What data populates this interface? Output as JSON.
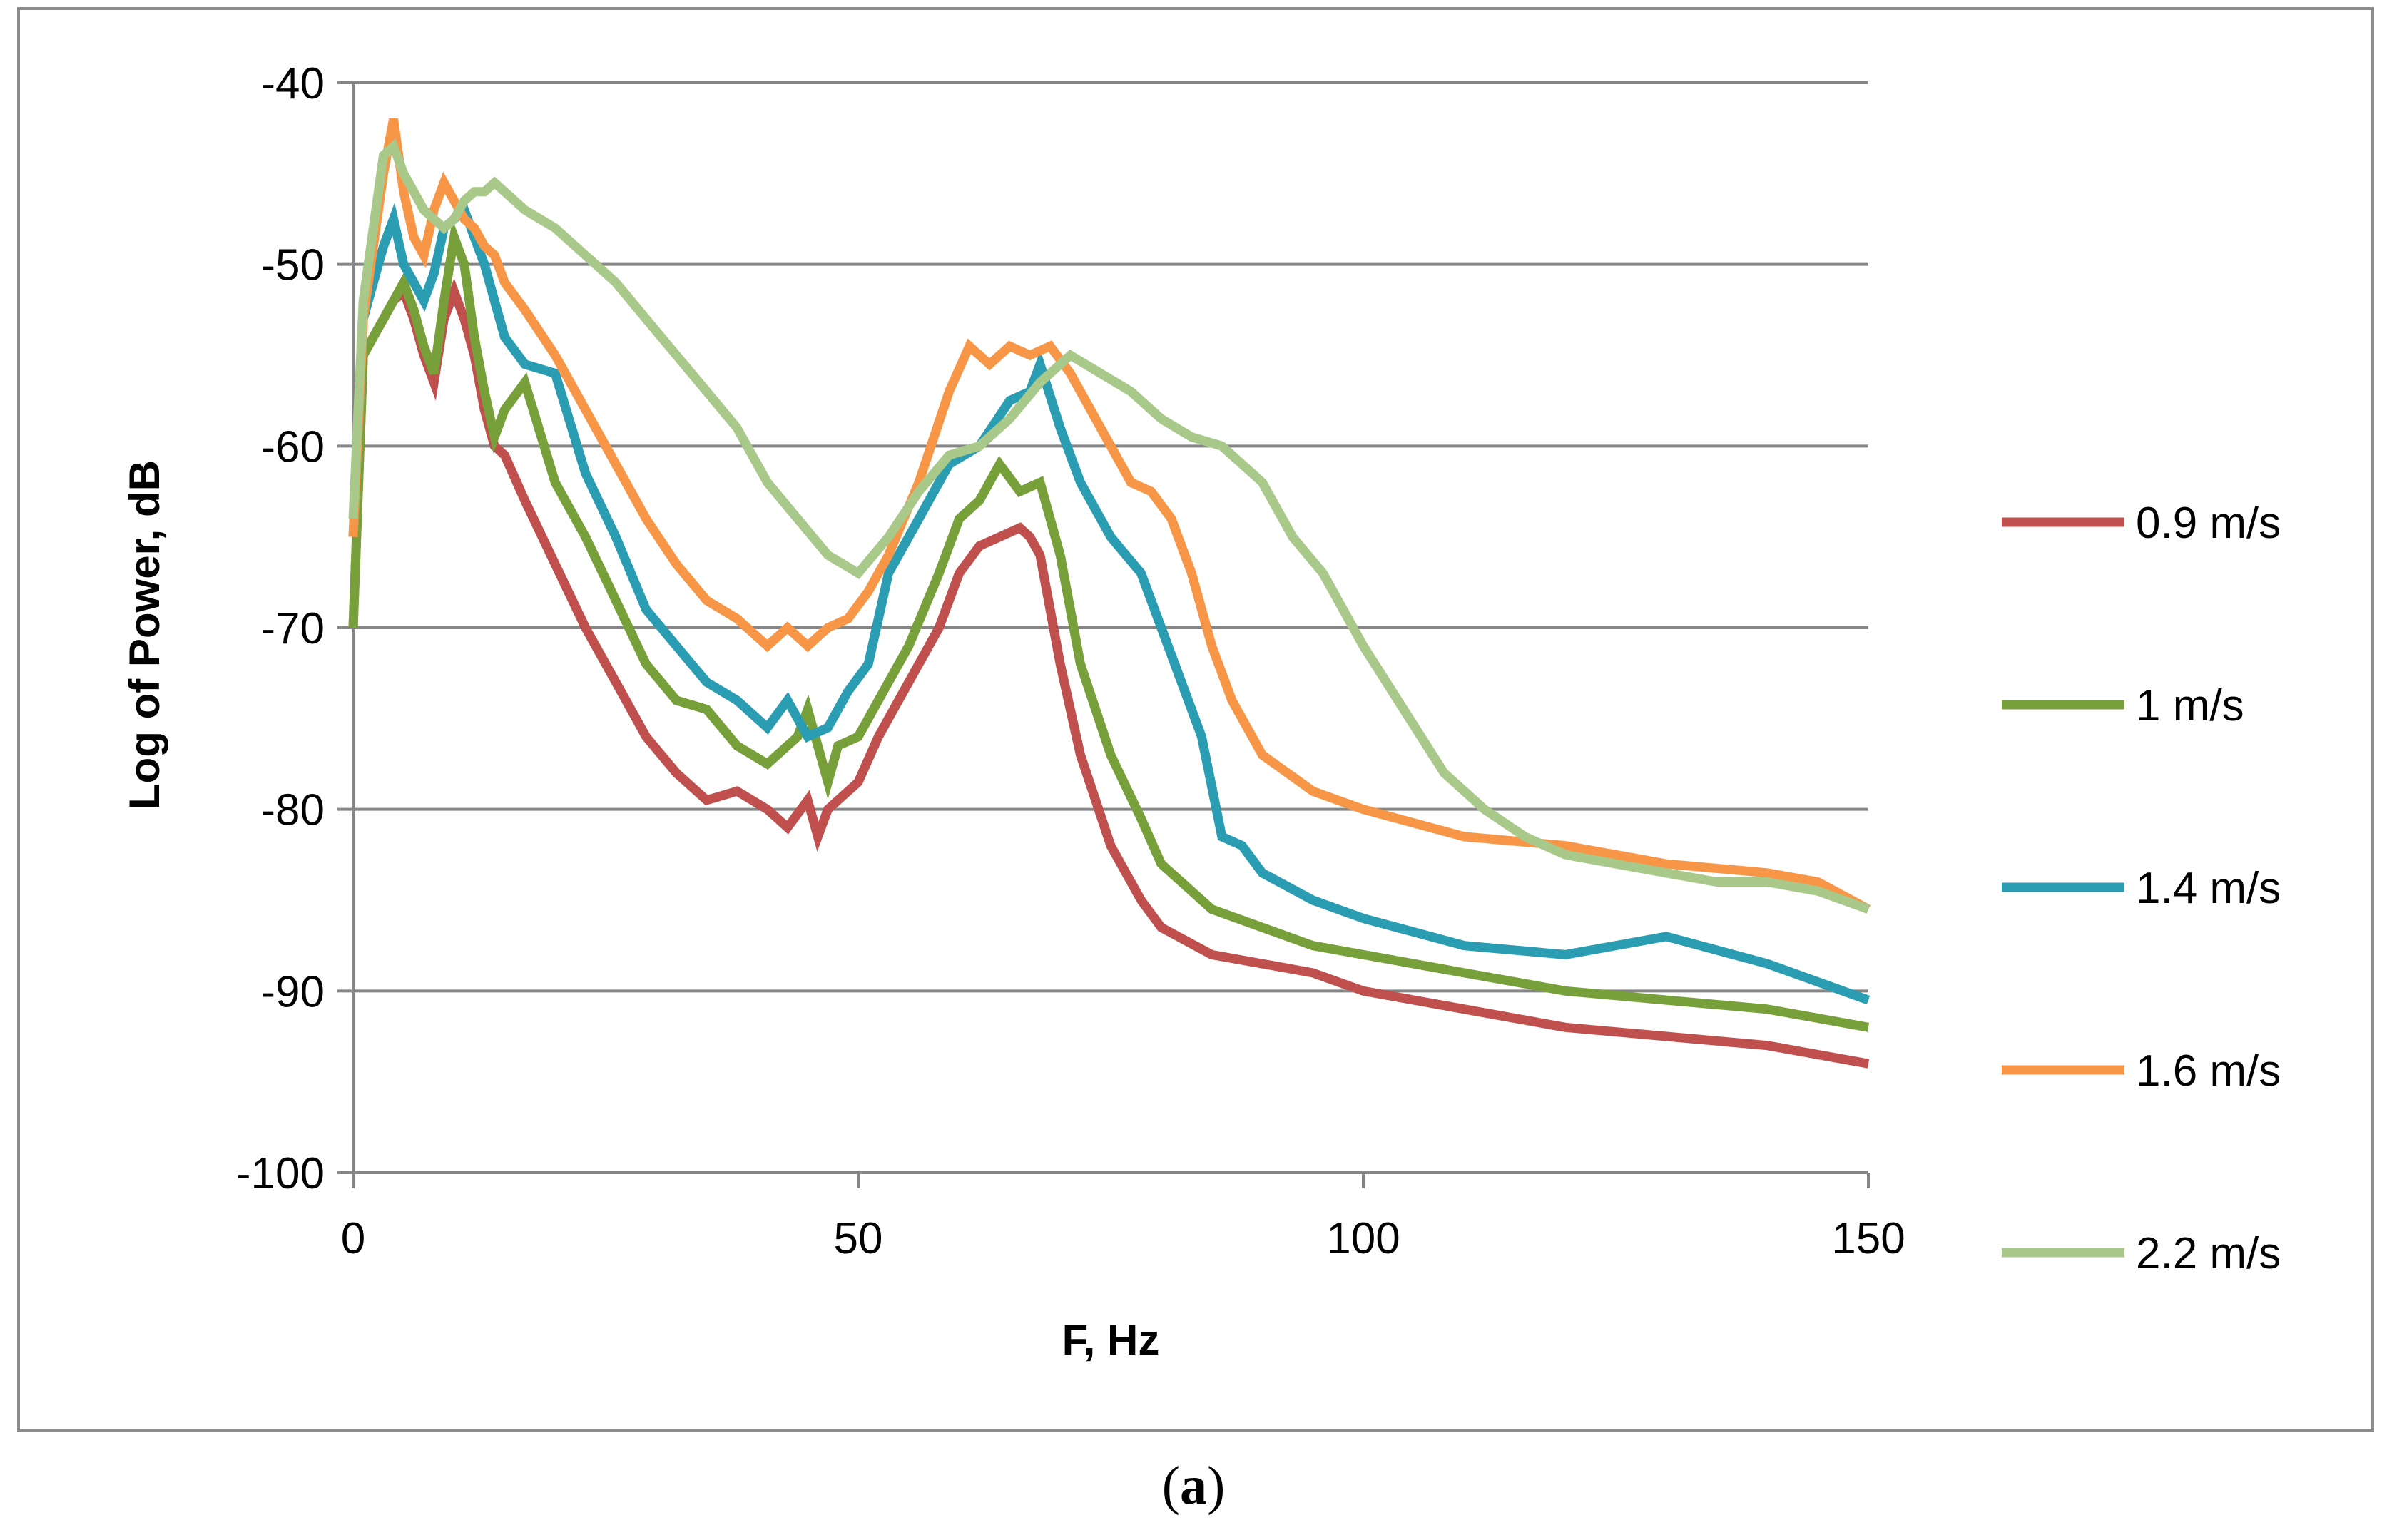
{
  "caption": {
    "open": "(",
    "letter": "a",
    "close": ")"
  },
  "chart_data": {
    "type": "line",
    "title": "",
    "xlabel": "F, Hz",
    "ylabel": "Log of Power, dB",
    "xlim": [
      0,
      150
    ],
    "ylim": [
      -100,
      -40
    ],
    "xticks": [
      0,
      50,
      100,
      150
    ],
    "yticks": [
      -40,
      -50,
      -60,
      -70,
      -80,
      -90,
      -100
    ],
    "grid": "horizontal",
    "legend_position": "right",
    "series": [
      {
        "name": "0.9 m/s",
        "color": "#c0504d",
        "x": [
          0,
          1,
          2,
          3,
          4,
          5,
          6,
          7,
          8,
          9,
          10,
          11,
          12,
          13,
          14,
          15,
          17,
          20,
          23,
          26,
          29,
          32,
          35,
          38,
          41,
          43,
          45,
          46,
          47,
          48,
          50,
          52,
          55,
          58,
          60,
          62,
          64,
          66,
          67,
          68,
          70,
          72,
          75,
          78,
          80,
          85,
          90,
          95,
          100,
          110,
          120,
          130,
          140,
          145,
          150
        ],
        "y": [
          -70,
          -55,
          -54,
          -53,
          -52,
          -51.5,
          -53,
          -55,
          -56.5,
          -53,
          -51.5,
          -53,
          -55,
          -58,
          -60,
          -60.5,
          -63,
          -66.5,
          -70,
          -73,
          -76,
          -78,
          -79.5,
          -79,
          -80,
          -81,
          -79.5,
          -81.5,
          -80,
          -79.5,
          -78.5,
          -76,
          -73,
          -70,
          -67,
          -65.5,
          -65,
          -64.5,
          -65,
          -66,
          -72,
          -77,
          -82,
          -85,
          -86.5,
          -88,
          -88.5,
          -89,
          -90,
          -91,
          -92,
          -92.5,
          -93,
          -93.5,
          -94
        ]
      },
      {
        "name": "1 m/s",
        "color": "#77a03a",
        "x": [
          0,
          1,
          2,
          3,
          4,
          5,
          6,
          7,
          8,
          9,
          10,
          11,
          12,
          13,
          14,
          15,
          17,
          20,
          23,
          26,
          29,
          32,
          35,
          38,
          41,
          44,
          45,
          47,
          48,
          50,
          52,
          55,
          58,
          60,
          62,
          64,
          66,
          68,
          70,
          72,
          75,
          78,
          80,
          85,
          90,
          95,
          100,
          110,
          120,
          130,
          140,
          145,
          150
        ],
        "y": [
          -70,
          -55,
          -54,
          -53,
          -52,
          -51,
          -52.5,
          -54.5,
          -56,
          -52,
          -48.5,
          -50,
          -54,
          -57,
          -59.5,
          -58,
          -56.5,
          -62,
          -65,
          -68.5,
          -72,
          -74,
          -74.5,
          -76.5,
          -77.5,
          -76,
          -74.5,
          -78.5,
          -76.5,
          -76,
          -74,
          -71,
          -67,
          -64,
          -63,
          -61,
          -62.5,
          -62,
          -66,
          -72,
          -77,
          -80.5,
          -83,
          -85.5,
          -86.5,
          -87.5,
          -88,
          -89,
          -90,
          -90.5,
          -91,
          -91.5,
          -92
        ]
      },
      {
        "name": "1.4 m/s",
        "color": "#2a9db2",
        "x": [
          0,
          1,
          2,
          3,
          4,
          5,
          6,
          7,
          8,
          9,
          10,
          11,
          12,
          13,
          14,
          15,
          17,
          20,
          23,
          26,
          29,
          32,
          35,
          38,
          41,
          43,
          45,
          47,
          49,
          51,
          53,
          56,
          59,
          62,
          65,
          67,
          68,
          70,
          72,
          75,
          78,
          80,
          82,
          84,
          86,
          88,
          90,
          95,
          100,
          110,
          120,
          130,
          140,
          145,
          150
        ],
        "y": [
          -65,
          -53,
          -51,
          -49,
          -47.5,
          -50,
          -51,
          -52,
          -50.5,
          -48,
          -47.5,
          -47,
          -48.5,
          -50,
          -52,
          -54,
          -55.5,
          -56,
          -61.5,
          -65,
          -69,
          -71,
          -73,
          -74,
          -75.5,
          -74,
          -76,
          -75.5,
          -73.5,
          -72,
          -67,
          -64,
          -61,
          -60,
          -57.5,
          -57,
          -55.5,
          -59,
          -62,
          -65,
          -67,
          -70,
          -73,
          -76,
          -81.5,
          -82,
          -83.5,
          -85,
          -86,
          -87.5,
          -88,
          -87,
          -88.5,
          -89.5,
          -90.5
        ]
      },
      {
        "name": "1.6 m/s",
        "color": "#f79646",
        "x": [
          0,
          1,
          2,
          3,
          4,
          5,
          6,
          7,
          8,
          9,
          10,
          11,
          12,
          13,
          14,
          15,
          17,
          20,
          23,
          26,
          29,
          32,
          35,
          38,
          41,
          43,
          45,
          47,
          49,
          51,
          53,
          56,
          59,
          61,
          63,
          65,
          67,
          69,
          71,
          73,
          75,
          77,
          79,
          81,
          83,
          85,
          87,
          90,
          95,
          100,
          110,
          120,
          130,
          140,
          145,
          150
        ],
        "y": [
          -65,
          -53,
          -49,
          -45,
          -42,
          -46,
          -48.5,
          -49.5,
          -47,
          -45.5,
          -46.5,
          -47.5,
          -48,
          -49,
          -49.5,
          -51,
          -52.5,
          -55,
          -58,
          -61,
          -64,
          -66.5,
          -68.5,
          -69.5,
          -71,
          -70,
          -71,
          -70,
          -69.5,
          -68,
          -66,
          -62,
          -57,
          -54.5,
          -55.5,
          -54.5,
          -55,
          -54.5,
          -56,
          -58,
          -60,
          -62,
          -62.5,
          -64,
          -67,
          -71,
          -74,
          -77,
          -79,
          -80,
          -81.5,
          -82,
          -83,
          -83.5,
          -84,
          -85.5
        ]
      },
      {
        "name": "2.2 m/s",
        "color": "#a9c98b",
        "x": [
          0,
          1,
          2,
          3,
          4,
          5,
          6,
          7,
          8,
          9,
          10,
          11,
          12,
          13,
          14,
          15,
          17,
          20,
          23,
          26,
          29,
          32,
          35,
          38,
          41,
          44,
          47,
          50,
          53,
          56,
          59,
          62,
          65,
          68,
          71,
          74,
          77,
          80,
          83,
          86,
          88,
          90,
          93,
          96,
          100,
          104,
          108,
          112,
          116,
          120,
          125,
          130,
          135,
          140,
          145,
          150
        ],
        "y": [
          -64,
          -52,
          -48,
          -44,
          -43.5,
          -45,
          -46,
          -47,
          -47.5,
          -48,
          -47.5,
          -46.5,
          -46,
          -46,
          -45.5,
          -46,
          -47,
          -48,
          -49.5,
          -51,
          -53,
          -55,
          -57,
          -59,
          -62,
          -64,
          -66,
          -67,
          -65,
          -62.5,
          -60.5,
          -60,
          -58.5,
          -56.5,
          -55,
          -56,
          -57,
          -58.5,
          -59.5,
          -60,
          -61,
          -62,
          -65,
          -67,
          -71,
          -74.5,
          -78,
          -80,
          -81.5,
          -82.5,
          -83,
          -83.5,
          -84,
          -84,
          -84.5,
          -85.5
        ]
      }
    ]
  }
}
